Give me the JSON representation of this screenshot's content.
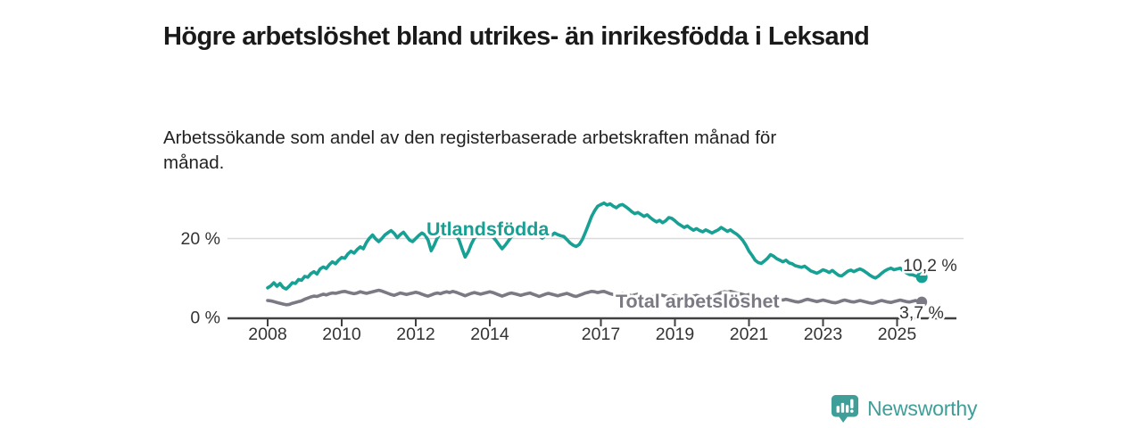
{
  "header": {
    "title": "Högre arbetslöshet bland utrikes- än inrikesfödda i Leksand",
    "subtitle": "Arbetssökande som andel av den registerbaserade arbetskraften månad för månad."
  },
  "chart_data": {
    "type": "line",
    "title": "Högre arbetslöshet bland utrikes- än inrikesfödda i Leksand",
    "subtitle": "Arbetssökande som andel av den registerbaserade arbetskraften månad för månad.",
    "x_start": "2008-01",
    "x_end": "2025-09",
    "frequency": "monthly",
    "unit": "%",
    "ylim": [
      0,
      30
    ],
    "grid": "horizontal-20-only",
    "legend_position": "inline-labels",
    "x_tick_years": [
      2008,
      2010,
      2012,
      2014,
      2017,
      2019,
      2021,
      2023,
      2025
    ],
    "x_tick_labels": [
      "2008",
      "2010",
      "2012",
      "2014",
      "2017",
      "2019",
      "2021",
      "2023",
      "2025"
    ],
    "y_ticks": [
      {
        "value": 0,
        "label": "0 %"
      },
      {
        "value": 20,
        "label": "20 %"
      }
    ],
    "series": [
      {
        "name": "Utlandsfödda",
        "color": "#17a094",
        "end_label": "10,2 %",
        "end_value": 10.2,
        "values": [
          7.5,
          8.0,
          8.8,
          7.9,
          8.6,
          7.6,
          7.2,
          7.9,
          8.8,
          8.6,
          9.6,
          9.4,
          10.4,
          10.2,
          11.1,
          11.6,
          11.0,
          12.3,
          12.8,
          12.4,
          13.4,
          14.1,
          13.6,
          14.5,
          15.2,
          15.0,
          16.1,
          16.8,
          16.3,
          17.2,
          17.9,
          17.4,
          19.0,
          20.1,
          20.9,
          19.9,
          19.2,
          20.0,
          20.9,
          21.5,
          22.0,
          21.3,
          20.2,
          21.0,
          21.6,
          20.6,
          19.6,
          19.2,
          20.0,
          20.8,
          21.4,
          20.9,
          19.6,
          16.9,
          18.4,
          20.2,
          21.2,
          21.8,
          21.3,
          20.9,
          21.4,
          20.8,
          19.7,
          17.4,
          15.3,
          16.6,
          18.6,
          20.1,
          21.0,
          21.5,
          20.9,
          21.2,
          21.0,
          20.4,
          19.5,
          18.4,
          17.4,
          18.3,
          19.4,
          20.5,
          21.1,
          20.7,
          21.4,
          22.0,
          22.4,
          22.0,
          21.6,
          21.1,
          20.6,
          20.1,
          20.7,
          21.2,
          20.8,
          21.4,
          21.0,
          20.7,
          20.5,
          19.7,
          18.9,
          18.3,
          18.0,
          18.5,
          19.8,
          21.6,
          23.6,
          25.6,
          27.1,
          28.2,
          28.6,
          29.0,
          28.5,
          28.8,
          28.2,
          27.8,
          28.4,
          28.6,
          28.1,
          27.5,
          26.8,
          26.3,
          26.6,
          26.1,
          25.6,
          26.0,
          25.3,
          24.7,
          24.2,
          24.6,
          24.0,
          24.5,
          25.3,
          25.1,
          24.5,
          23.8,
          23.3,
          22.8,
          23.2,
          22.6,
          22.1,
          22.5,
          22.0,
          21.7,
          22.2,
          21.8,
          21.4,
          21.8,
          22.2,
          22.8,
          22.3,
          21.8,
          22.2,
          21.6,
          21.1,
          20.4,
          19.5,
          18.3,
          16.8,
          15.7,
          14.5,
          13.9,
          13.7,
          14.3,
          15.0,
          15.9,
          15.5,
          14.9,
          14.5,
          14.1,
          14.5,
          13.8,
          13.6,
          13.1,
          12.9,
          12.7,
          13.0,
          12.4,
          11.8,
          11.5,
          11.2,
          11.6,
          12.1,
          11.8,
          11.4,
          11.9,
          11.3,
          10.7,
          10.5,
          11.1,
          11.7,
          12.0,
          11.6,
          12.0,
          12.3,
          11.9,
          11.4,
          10.8,
          10.3,
          10.0,
          10.5,
          11.2,
          11.8,
          12.2,
          12.5,
          12.1,
          12.3,
          12.5,
          11.8,
          11.3,
          10.9,
          10.8,
          10.5,
          10.3,
          10.2
        ]
      },
      {
        "name": "Total arbetslöshet",
        "color": "#7b7983",
        "end_label": "3,7 %",
        "end_value": 3.7,
        "values": [
          4.3,
          4.2,
          4.0,
          3.8,
          3.6,
          3.4,
          3.2,
          3.3,
          3.6,
          3.8,
          4.0,
          4.2,
          4.6,
          4.9,
          5.2,
          5.4,
          5.3,
          5.6,
          5.9,
          5.7,
          6.0,
          6.2,
          6.1,
          6.3,
          6.5,
          6.6,
          6.4,
          6.2,
          6.0,
          6.2,
          6.5,
          6.3,
          6.1,
          6.3,
          6.5,
          6.7,
          6.9,
          6.7,
          6.4,
          6.1,
          5.8,
          5.6,
          5.9,
          6.2,
          6.0,
          5.8,
          6.0,
          6.2,
          6.4,
          6.2,
          5.9,
          5.6,
          5.4,
          5.7,
          6.0,
          6.2,
          6.0,
          6.3,
          6.5,
          6.3,
          6.6,
          6.4,
          6.1,
          5.8,
          5.5,
          5.8,
          6.1,
          6.3,
          6.1,
          5.9,
          6.1,
          6.3,
          6.5,
          6.3,
          6.0,
          5.7,
          5.4,
          5.7,
          6.0,
          6.2,
          6.0,
          5.8,
          5.6,
          5.8,
          6.0,
          6.2,
          5.9,
          5.6,
          5.3,
          5.6,
          5.9,
          6.1,
          5.9,
          5.7,
          5.5,
          5.7,
          5.9,
          6.1,
          5.8,
          5.5,
          5.3,
          5.6,
          5.9,
          6.2,
          6.4,
          6.6,
          6.5,
          6.3,
          6.5,
          6.6,
          6.3,
          6.0,
          5.8,
          5.6,
          5.9,
          6.1,
          5.9,
          5.7,
          5.5,
          5.7,
          5.9,
          5.7,
          5.4,
          5.2,
          5.0,
          5.3,
          5.6,
          5.8,
          5.6,
          5.4,
          5.2,
          5.4,
          5.6,
          5.4,
          5.1,
          4.9,
          4.8,
          5.1,
          5.4,
          5.6,
          5.4,
          5.2,
          5.0,
          5.2,
          5.4,
          5.6,
          5.9,
          6.3,
          6.5,
          6.4,
          6.6,
          6.4,
          6.2,
          6.0,
          5.8,
          5.6,
          5.8,
          5.6,
          5.3,
          5.0,
          4.8,
          4.6,
          4.9,
          5.1,
          4.9,
          4.7,
          4.5,
          4.4,
          4.6,
          4.4,
          4.2,
          4.0,
          3.9,
          4.1,
          4.4,
          4.6,
          4.4,
          4.2,
          4.0,
          4.2,
          4.4,
          4.2,
          4.0,
          3.8,
          3.7,
          3.9,
          4.2,
          4.4,
          4.2,
          4.0,
          3.9,
          4.1,
          4.3,
          4.1,
          3.9,
          3.7,
          3.6,
          3.8,
          4.1,
          4.3,
          4.1,
          3.9,
          3.8,
          4.0,
          4.2,
          4.4,
          4.2,
          4.0,
          3.9,
          4.1,
          4.3,
          4.0,
          3.7
        ]
      }
    ],
    "colors": {
      "grid_line": "#d9d9d9",
      "axis_line": "#414141",
      "tick_text": "#333333",
      "value_label_text": "#333333"
    }
  },
  "footer": {
    "brand": "Newsworthy",
    "brand_color": "#3f9e98",
    "logo_icon": "bar-chart-speech-bubble-icon"
  }
}
